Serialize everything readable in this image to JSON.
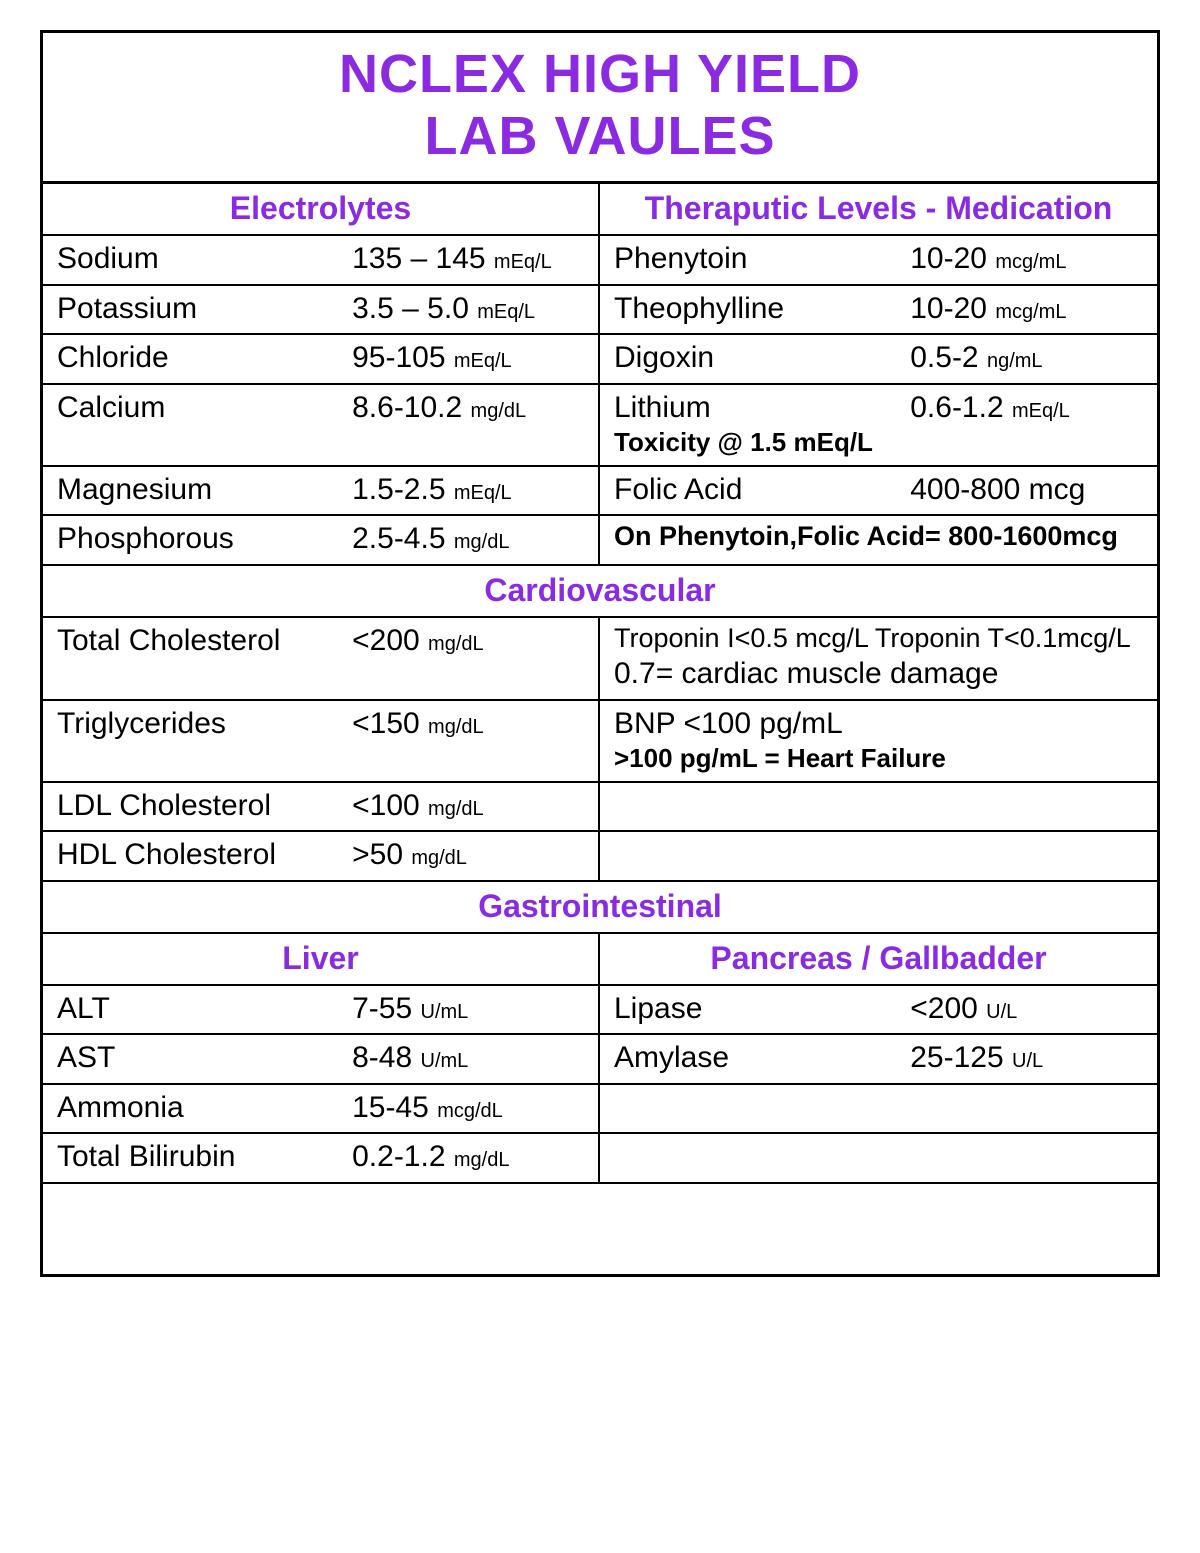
{
  "colors": {
    "accent": "#8a2be2",
    "text": "#000000",
    "border": "#000000",
    "bg": "#ffffff"
  },
  "title": {
    "line1": "NCLEX HIGH YIELD",
    "line2": "LAB VAULES"
  },
  "headers": {
    "electrolytes": "Electrolytes",
    "therapeutic": "Theraputic Levels - Medication",
    "cardio": "Cardiovascular",
    "gastro": "Gastrointestinal",
    "liver": "Liver",
    "pancreas": "Pancreas / Gallbadder"
  },
  "elec": {
    "sodium": {
      "name": "Sodium",
      "val": "135 – 145",
      "unit": "mEq/L"
    },
    "potassium": {
      "name": "Potassium",
      "val": "3.5 – 5.0",
      "unit": "mEq/L"
    },
    "chloride": {
      "name": "Chloride",
      "val": "95-105",
      "unit": "mEq/L"
    },
    "calcium": {
      "name": "Calcium",
      "val": "8.6-10.2",
      "unit": "mg/dL"
    },
    "magnesium": {
      "name": "Magnesium",
      "val": "1.5-2.5",
      "unit": "mEq/L"
    },
    "phosphorous": {
      "name": "Phosphorous",
      "val": "2.5-4.5",
      "unit": "mg/dL"
    }
  },
  "ther": {
    "phenytoin": {
      "name": "Phenytoin",
      "val": "10-20",
      "unit": "mcg/mL"
    },
    "theophylline": {
      "name": "Theophylline",
      "val": "10-20",
      "unit": "mcg/mL"
    },
    "digoxin": {
      "name": "Digoxin",
      "val": "0.5-2",
      "unit": "ng/mL"
    },
    "lithium": {
      "name": "Lithium",
      "val": "0.6-1.2",
      "unit": "mEq/L",
      "note": "Toxicity @ 1.5 mEq/L"
    },
    "folic": {
      "name": "Folic Acid",
      "val": "400-800 mcg",
      "unit": ""
    },
    "folic_note": "On Phenytoin,Folic Acid= 800-1600mcg"
  },
  "cardio": {
    "totchol": {
      "name": "Total Cholesterol",
      "val": "<200",
      "unit": "mg/dL"
    },
    "trop": {
      "text": "Troponin I<0.5 mcg/L Troponin T<0.1mcg/L",
      "sub": "0.7= cardiac muscle damage"
    },
    "trig": {
      "name": "Triglycerides",
      "val": "<150",
      "unit": "mg/dL"
    },
    "bnp": {
      "text": "BNP   <100 pg/mL",
      "sub": ">100 pg/mL = Heart Failure"
    },
    "ldl": {
      "name": "LDL Cholesterol",
      "val": "<100",
      "unit": "mg/dL"
    },
    "hdl": {
      "name": "HDL Cholesterol",
      "val": ">50",
      "unit": "mg/dL"
    }
  },
  "liver": {
    "alt": {
      "name": "ALT",
      "val": "7-55",
      "unit": "U/mL"
    },
    "ast": {
      "name": "AST",
      "val": "8-48",
      "unit": "U/mL"
    },
    "amm": {
      "name": "Ammonia",
      "val": "15-45",
      "unit": "mcg/dL"
    },
    "tbil": {
      "name": "Total Bilirubin",
      "val": "0.2-1.2",
      "unit": "mg/dL"
    }
  },
  "panc": {
    "lipase": {
      "name": "Lipase",
      "val": "<200",
      "unit": "U/L"
    },
    "amylase": {
      "name": "Amylase",
      "val": "25-125",
      "unit": "U/L"
    }
  }
}
